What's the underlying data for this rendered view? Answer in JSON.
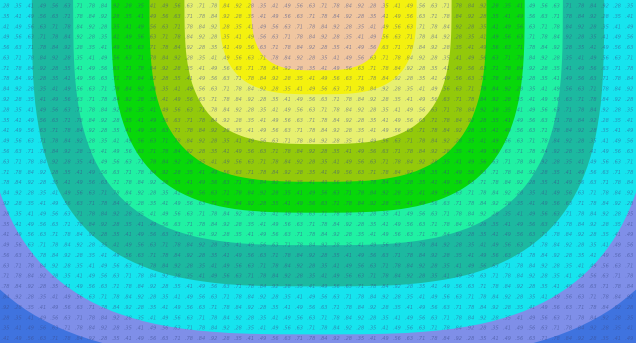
{
  "chart_data": {
    "type": "heatmap",
    "title": "",
    "xlabel": "",
    "ylabel": "",
    "style": "filled-contour",
    "grid": false,
    "legend": "none",
    "colorscale": [
      {
        "level": 1,
        "color": "#3f73df"
      },
      {
        "level": 2,
        "color": "#7f8fe8"
      },
      {
        "level": 3,
        "color": "#16e4ee"
      },
      {
        "level": 4,
        "color": "#1cb9a0"
      },
      {
        "level": 5,
        "color": "#20f1a3"
      },
      {
        "level": 6,
        "color": "#07d80a"
      },
      {
        "level": 7,
        "color": "#93c90a"
      },
      {
        "level": 8,
        "color": "#e7f070"
      },
      {
        "level": 9,
        "color": "#f4f10e"
      },
      {
        "level": 10,
        "color": "#f0c6a0"
      }
    ],
    "contours": [
      {
        "level": 2,
        "center_x_frac": 0.5,
        "semi_x_frac": 0.62,
        "depth_frac": 1.05
      },
      {
        "level": 3,
        "center_x_frac": 0.5,
        "semi_x_frac": 0.53,
        "depth_frac": 0.975
      },
      {
        "level": 4,
        "center_x_frac": 0.5,
        "semi_x_frac": 0.45,
        "depth_frac": 0.835
      },
      {
        "level": 5,
        "center_x_frac": 0.5,
        "semi_x_frac": 0.385,
        "depth_frac": 0.715
      },
      {
        "level": 6,
        "center_x_frac": 0.5,
        "semi_x_frac": 0.325,
        "depth_frac": 0.62
      },
      {
        "level": 7,
        "center_x_frac": 0.5,
        "semi_x_frac": 0.265,
        "depth_frac": 0.53
      },
      {
        "level": 8,
        "center_x_frac": 0.5,
        "semi_x_frac": 0.21,
        "depth_frac": 0.42
      },
      {
        "level": 9,
        "center_x_frac": 0.5,
        "semi_x_frac": 0.155,
        "depth_frac": 0.275
      },
      {
        "level": 10,
        "center_x_frac": 0.5,
        "semi_x_frac": 0.105,
        "depth_frac": 0.205
      }
    ],
    "cell_labels": {
      "columns": 52,
      "rows": 33,
      "note": "each grid cell carries a small italic numeric label in the original, too small to read"
    }
  }
}
